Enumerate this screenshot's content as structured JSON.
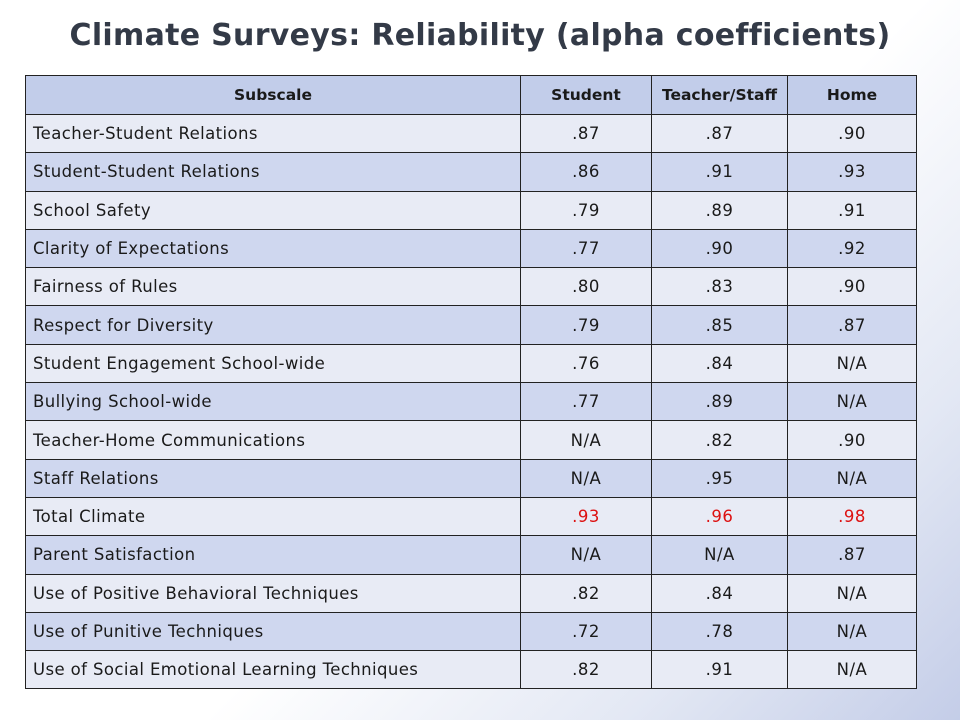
{
  "title": "Climate Surveys: Reliability (alpha coefficients)",
  "columns": [
    "Subscale",
    "Student",
    "Teacher/Staff",
    "Home"
  ],
  "highlight_color": "#dd1111",
  "rows": [
    {
      "subscale": "Teacher-Student Relations",
      "student": ".87",
      "teacher": ".87",
      "home": ".90"
    },
    {
      "subscale": "Student-Student Relations",
      "student": ".86",
      "teacher": ".91",
      "home": ".93"
    },
    {
      "subscale": "School Safety",
      "student": ".79",
      "teacher": ".89",
      "home": ".91"
    },
    {
      "subscale": "Clarity of Expectations",
      "student": ".77",
      "teacher": ".90",
      "home": ".92"
    },
    {
      "subscale": "Fairness of Rules",
      "student": ".80",
      "teacher": ".83",
      "home": ".90"
    },
    {
      "subscale": "Respect for Diversity",
      "student": ".79",
      "teacher": ".85",
      "home": ".87"
    },
    {
      "subscale": "Student Engagement School-wide",
      "student": ".76",
      "teacher": ".84",
      "home": "N/A"
    },
    {
      "subscale": "Bullying School-wide",
      "student": ".77",
      "teacher": ".89",
      "home": "N/A"
    },
    {
      "subscale": "Teacher-Home Communications",
      "student": "N/A",
      "teacher": ".82",
      "home": ".90"
    },
    {
      "subscale": "Staff Relations",
      "student": "N/A",
      "teacher": ".95",
      "home": "N/A"
    },
    {
      "subscale": "Total Climate",
      "student": ".93",
      "teacher": ".96",
      "home": ".98"
    },
    {
      "subscale": "Parent Satisfaction",
      "student": "N/A",
      "teacher": "N/A",
      "home": ".87"
    },
    {
      "subscale": "Use of Positive Behavioral Techniques",
      "student": ".82",
      "teacher": ".84",
      "home": "N/A"
    },
    {
      "subscale": "Use of Punitive Techniques",
      "student": ".72",
      "teacher": ".78",
      "home": "N/A"
    },
    {
      "subscale": "Use of Social Emotional Learning Techniques",
      "student": ".82",
      "teacher": ".91",
      "home": "N/A"
    }
  ]
}
